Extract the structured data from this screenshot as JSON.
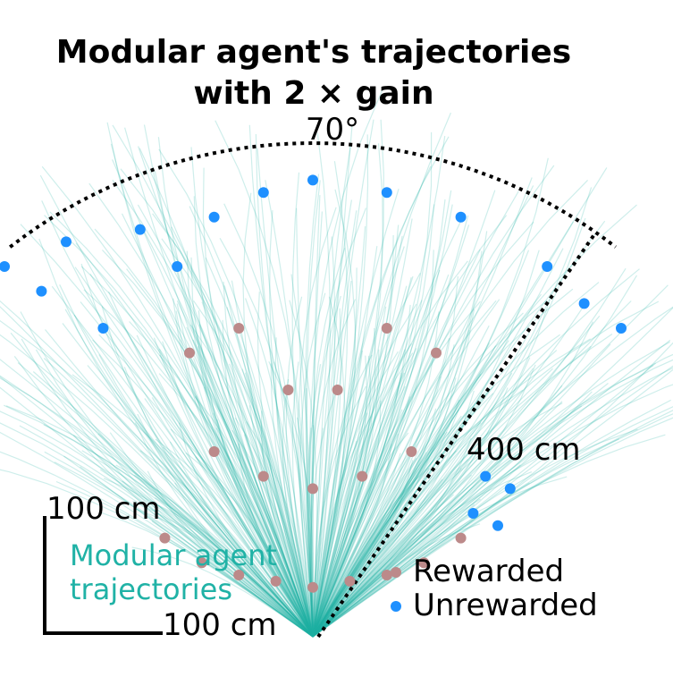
{
  "chart_data": {
    "type": "scatter",
    "title_line1": "Modular agent's trajectories",
    "title_line2": "with 2 × gain",
    "angle_label": "70°",
    "distance_label": "400 cm",
    "scale_bar_vertical_label": "100 cm",
    "scale_bar_horizontal_label": "100 cm",
    "trajectory_label_line1": "Modular agent",
    "trajectory_label_line2": "trajectories",
    "field_of_view_deg": 70,
    "max_distance_cm": 400,
    "scale_bar_cm": 100,
    "grid": false,
    "legend": {
      "placement": "bottom-right",
      "entries": [
        "Rewarded",
        "Unrewarded"
      ]
    },
    "colors": {
      "trajectory": "#20b2a6",
      "rewarded": "#bc8a8a",
      "unrewarded": "#1e90ff",
      "boundary": "#000000"
    },
    "series": [
      {
        "name": "Rewarded",
        "color": "#bc8a8a",
        "x": [
          -120,
          -90,
          -60,
          -30,
          0,
          30,
          60,
          90,
          120,
          -80,
          -40,
          40,
          80,
          0,
          -100,
          100,
          60,
          -60,
          20,
          -20
        ],
        "y": [
          80,
          60,
          50,
          45,
          40,
          45,
          50,
          60,
          80,
          150,
          130,
          130,
          150,
          120,
          230,
          230,
          250,
          250,
          200,
          200
        ]
      },
      {
        "name": "Unrewarded",
        "color": "#1e90ff",
        "x": [
          -250,
          -220,
          -200,
          -170,
          -140,
          -110,
          -80,
          -40,
          0,
          60,
          120,
          160,
          190,
          220,
          250,
          130,
          140,
          150
        ],
        "y": [
          300,
          280,
          320,
          250,
          330,
          300,
          340,
          360,
          370,
          360,
          340,
          120,
          300,
          270,
          250,
          100,
          130,
          90
        ]
      }
    ],
    "trajectories_count": 400
  }
}
